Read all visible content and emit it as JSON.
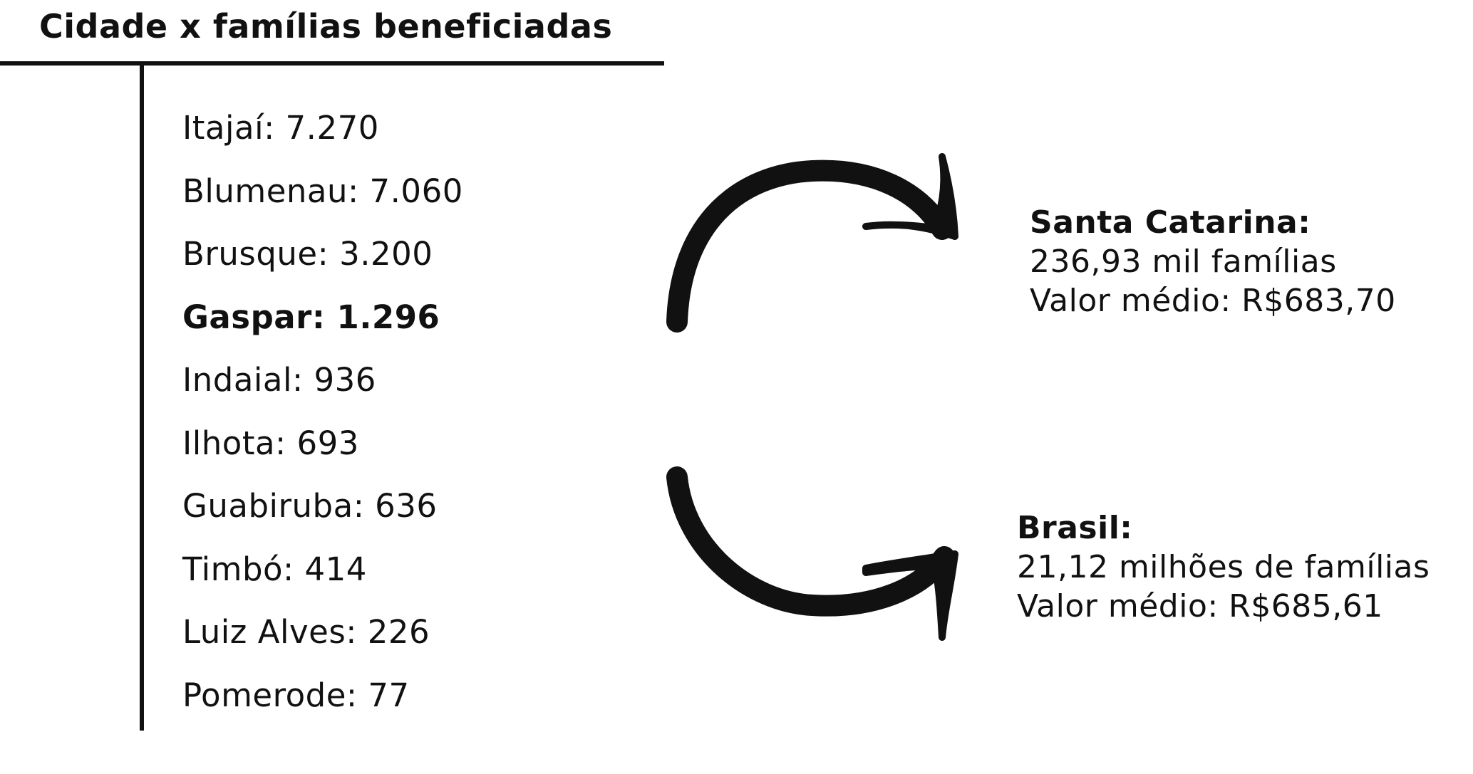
{
  "title": "Cidade x famílias beneficiadas",
  "cities": [
    {
      "text": "Itajaí: 7.270",
      "bold": false
    },
    {
      "text": "Blumenau: 7.060",
      "bold": false
    },
    {
      "text": "Brusque: 3.200",
      "bold": false
    },
    {
      "text": "Gaspar: 1.296",
      "bold": true
    },
    {
      "text": "Indaial: 936",
      "bold": false
    },
    {
      "text": "Ilhota: 693",
      "bold": false
    },
    {
      "text": "Guabiruba: 636",
      "bold": false
    },
    {
      "text": "Timbó: 414",
      "bold": false
    },
    {
      "text": "Luiz Alves: 226",
      "bold": false
    },
    {
      "text": "Pomerode: 77",
      "bold": false
    }
  ],
  "santa_catarina": {
    "heading": "Santa Catarina:",
    "families": "236,93 mil famílias",
    "average": "Valor médio: R$683,70"
  },
  "brasil": {
    "heading": "Brasil:",
    "families": "21,12 milhões de famílias",
    "average": "Valor médio: R$685,61"
  },
  "arrow_color": "#111111"
}
